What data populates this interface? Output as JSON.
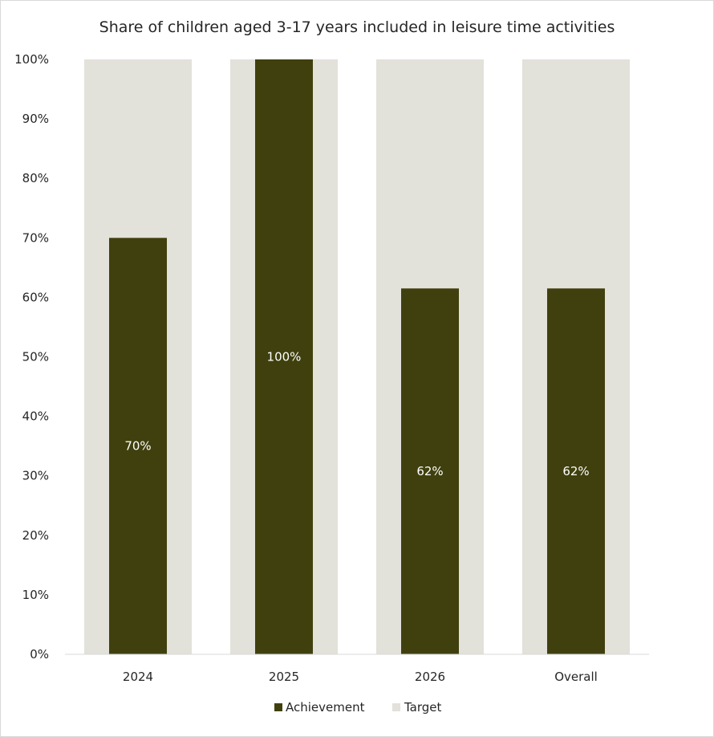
{
  "chart_data": {
    "type": "bar",
    "title": "Share of children aged 3-17 years included in leisure time activities",
    "categories": [
      "2024",
      "2025",
      "2026",
      "Overall"
    ],
    "series": [
      {
        "name": "Target",
        "values": [
          100,
          100,
          100,
          100
        ],
        "color": "#e2e1da"
      },
      {
        "name": "Achievement",
        "values": [
          70,
          100,
          61.5,
          61.5
        ],
        "data_labels": [
          "70%",
          "100%",
          "62%",
          "62%"
        ],
        "color": "#40400e"
      }
    ],
    "ylim": [
      0,
      100
    ],
    "yticks": [
      "0%",
      "10%",
      "20%",
      "30%",
      "40%",
      "50%",
      "60%",
      "70%",
      "80%",
      "90%",
      "100%"
    ],
    "xlabel": "",
    "ylabel": "",
    "grid": false,
    "overlapped_bars": true,
    "legend": {
      "position": "bottom",
      "entries": [
        "Achievement",
        "Target"
      ]
    }
  }
}
